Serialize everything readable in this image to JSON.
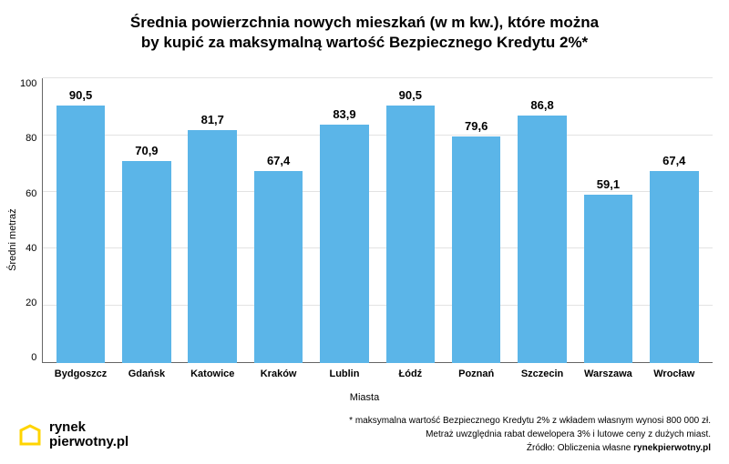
{
  "chart": {
    "type": "bar",
    "title_line1": "Średnia powierzchnia nowych mieszkań (w m kw.), które można",
    "title_line2": "by kupić za maksymalną wartość Bezpiecznego Kredytu 2%*",
    "title_fontsize": 17,
    "y_axis_label": "Średni metraż",
    "x_axis_label": "Miasta",
    "label_fontsize": 11,
    "ylim": [
      0,
      100
    ],
    "y_ticks": [
      "100",
      "80",
      "60",
      "40",
      "20",
      "0"
    ],
    "ytick_step": 20,
    "categories": [
      "Bydgoszcz",
      "Gdańsk",
      "Katowice",
      "Kraków",
      "Lublin",
      "Łódź",
      "Poznań",
      "Szczecin",
      "Warszawa",
      "Wrocław"
    ],
    "values": [
      90.5,
      70.9,
      81.7,
      67.4,
      83.9,
      90.5,
      79.6,
      86.8,
      59.1,
      67.4
    ],
    "value_labels": [
      "90,5",
      "70,9",
      "81,7",
      "67,4",
      "83,9",
      "90,5",
      "79,6",
      "86,8",
      "59,1",
      "67,4"
    ],
    "bar_color": "#5bb5e8",
    "bar_width": 0.74,
    "background_color": "#ffffff",
    "grid_color": "#e3e3e3",
    "axis_color": "#666666",
    "text_color": "#000000",
    "value_fontsize": 13,
    "category_fontsize": 11
  },
  "footer": {
    "logo_color": "#ffd400",
    "logo_stroke": "#000000",
    "logo_line1": "rynek",
    "logo_line2": "pierwotny.pl",
    "logo_fontsize": 15,
    "note1": "* maksymalna wartość Bezpiecznego Kredytu 2% z wkładem własnym wynosi 800 000 zł.",
    "note2": "Metraż uwzględnia rabat dewelopera 3% i lutowe ceny z dużych miast.",
    "source_label": "Źródło: Obliczenia własne ",
    "source_name": "rynekpierwotny.pl",
    "footnote_fontsize": 10
  }
}
